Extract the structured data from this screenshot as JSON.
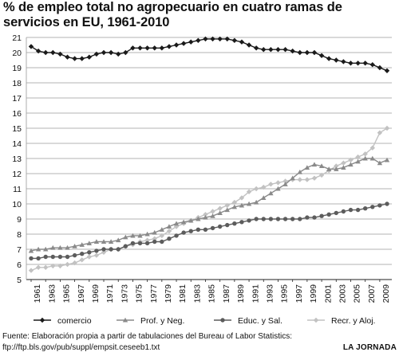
{
  "chart_data": {
    "type": "line",
    "title": "% de empleo total no agropecuario en cuatro ramas de servicios en EU, 1961-2010",
    "xlabel": "",
    "ylabel": "",
    "ylim": [
      5,
      21
    ],
    "grid": true,
    "legend_position": "bottom",
    "x": [
      1961,
      1962,
      1963,
      1964,
      1965,
      1966,
      1967,
      1968,
      1969,
      1970,
      1971,
      1972,
      1973,
      1974,
      1975,
      1976,
      1977,
      1978,
      1979,
      1980,
      1981,
      1982,
      1983,
      1984,
      1985,
      1986,
      1987,
      1988,
      1989,
      1990,
      1991,
      1992,
      1993,
      1994,
      1995,
      1996,
      1997,
      1998,
      1999,
      2000,
      2001,
      2002,
      2003,
      2004,
      2005,
      2006,
      2007,
      2008,
      2009,
      2010
    ],
    "x_tick_labels": [
      "1961",
      "1963",
      "1965",
      "1967",
      "1969",
      "1971",
      "1973",
      "1975",
      "1977",
      "1979",
      "1981",
      "1983",
      "1985",
      "1987",
      "1989",
      "1991",
      "1993",
      "1995",
      "1997",
      "1999",
      "2001",
      "2003",
      "2005",
      "2007",
      "2009"
    ],
    "y_tick_labels": [
      "5",
      "6",
      "7",
      "8",
      "9",
      "10",
      "11",
      "12",
      "13",
      "14",
      "15",
      "16",
      "17",
      "18",
      "19",
      "20",
      "21"
    ],
    "series": [
      {
        "name": "comercio",
        "color": "#1a1a1a",
        "marker": "diamond",
        "values": [
          20.4,
          20.1,
          20.0,
          20.0,
          19.9,
          19.7,
          19.6,
          19.6,
          19.7,
          19.9,
          20.0,
          20.0,
          19.9,
          20.0,
          20.3,
          20.3,
          20.3,
          20.3,
          20.3,
          20.4,
          20.5,
          20.6,
          20.7,
          20.8,
          20.9,
          20.9,
          20.9,
          20.9,
          20.8,
          20.7,
          20.5,
          20.3,
          20.2,
          20.2,
          20.2,
          20.2,
          20.1,
          20.0,
          20.0,
          20.0,
          19.8,
          19.6,
          19.5,
          19.4,
          19.3,
          19.3,
          19.3,
          19.2,
          19.0,
          18.8
        ]
      },
      {
        "name": "Prof. y Neg.",
        "color": "#8a8a8a",
        "marker": "triangle",
        "values": [
          6.9,
          7.0,
          7.0,
          7.1,
          7.1,
          7.1,
          7.2,
          7.3,
          7.4,
          7.5,
          7.5,
          7.5,
          7.6,
          7.8,
          7.9,
          7.9,
          8.0,
          8.1,
          8.3,
          8.5,
          8.7,
          8.8,
          8.9,
          9.0,
          9.1,
          9.2,
          9.4,
          9.6,
          9.8,
          9.9,
          10.0,
          10.1,
          10.4,
          10.7,
          11.0,
          11.3,
          11.7,
          12.1,
          12.4,
          12.6,
          12.5,
          12.3,
          12.3,
          12.4,
          12.6,
          12.8,
          13.0,
          13.0,
          12.7,
          12.9
        ]
      },
      {
        "name": "Educ. y Sal.",
        "color": "#5c5c5c",
        "marker": "circle",
        "values": [
          6.4,
          6.4,
          6.5,
          6.5,
          6.5,
          6.5,
          6.6,
          6.7,
          6.8,
          6.9,
          7.0,
          7.0,
          7.0,
          7.2,
          7.4,
          7.4,
          7.4,
          7.5,
          7.5,
          7.7,
          7.9,
          8.1,
          8.2,
          8.3,
          8.3,
          8.4,
          8.5,
          8.6,
          8.7,
          8.8,
          8.9,
          9.0,
          9.0,
          9.0,
          9.0,
          9.0,
          9.0,
          9.0,
          9.1,
          9.1,
          9.2,
          9.3,
          9.4,
          9.5,
          9.6,
          9.6,
          9.7,
          9.8,
          9.9,
          10.0
        ]
      },
      {
        "name": "Recr. y Aloj.",
        "color": "#c2c2c2",
        "marker": "diamond",
        "values": [
          5.6,
          5.8,
          5.8,
          5.9,
          5.9,
          6.0,
          6.1,
          6.3,
          6.5,
          6.6,
          6.8,
          7.0,
          7.0,
          7.2,
          7.3,
          7.5,
          7.6,
          7.7,
          7.9,
          8.2,
          8.5,
          8.7,
          8.9,
          9.1,
          9.3,
          9.5,
          9.7,
          9.9,
          10.1,
          10.4,
          10.8,
          11.0,
          11.1,
          11.3,
          11.4,
          11.5,
          11.6,
          11.6,
          11.6,
          11.7,
          11.9,
          12.2,
          12.5,
          12.7,
          12.9,
          13.1,
          13.3,
          13.7,
          14.7,
          15.0
        ]
      }
    ]
  },
  "footnote": {
    "line1": "Fuente: Elaboración propia a partir de tabulaciones del Bureau of Labor Statistics:",
    "line2": "ftp://ftp.bls.gov/pub/suppl/empsit.ceseeb1.txt"
  },
  "brand": "LA JORNADA"
}
